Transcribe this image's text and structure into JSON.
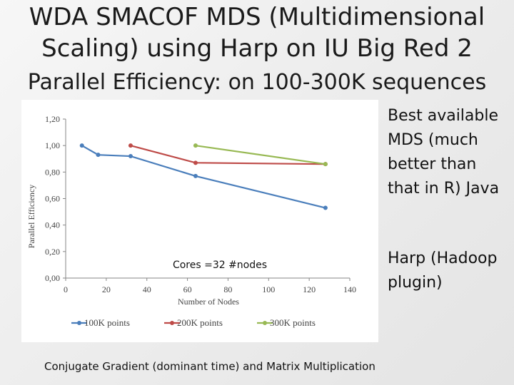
{
  "slide": {
    "title_line1": "WDA SMACOF MDS (Multidimensional",
    "title_line2": "Scaling) using Harp on IU Big Red 2",
    "title_line3": "Parallel Efficiency: on 100-300K sequences",
    "note_best": "Best available MDS (much better than that in R) Java",
    "note_harp": "Harp (Hadoop plugin)",
    "footer": "Conjugate Gradient (dominant time) and Matrix Multiplication"
  },
  "chart_data": {
    "type": "line",
    "title": "",
    "xlabel": "Number of Nodes",
    "ylabel": "Parallel Efficiency",
    "xlim": [
      0,
      140
    ],
    "ylim": [
      0,
      1.2
    ],
    "x_ticks": [
      "0",
      "20",
      "40",
      "60",
      "80",
      "100",
      "120",
      "140"
    ],
    "y_ticks": [
      "0,00",
      "0,20",
      "0,40",
      "0,60",
      "0,80",
      "1,00",
      "1,20"
    ],
    "annotation": "Cores =32 #nodes",
    "grid": false,
    "legend_position": "bottom",
    "series": [
      {
        "name": "100K points",
        "color": "#4a7ebb",
        "x": [
          8,
          16,
          32,
          64,
          128
        ],
        "y": [
          1.0,
          0.93,
          0.92,
          0.77,
          0.53
        ]
      },
      {
        "name": "200K points",
        "color": "#be4b48",
        "x": [
          32,
          64,
          128
        ],
        "y": [
          1.0,
          0.87,
          0.86
        ]
      },
      {
        "name": "300K points",
        "color": "#98b954",
        "x": [
          64,
          128
        ],
        "y": [
          1.0,
          0.86
        ]
      }
    ]
  }
}
